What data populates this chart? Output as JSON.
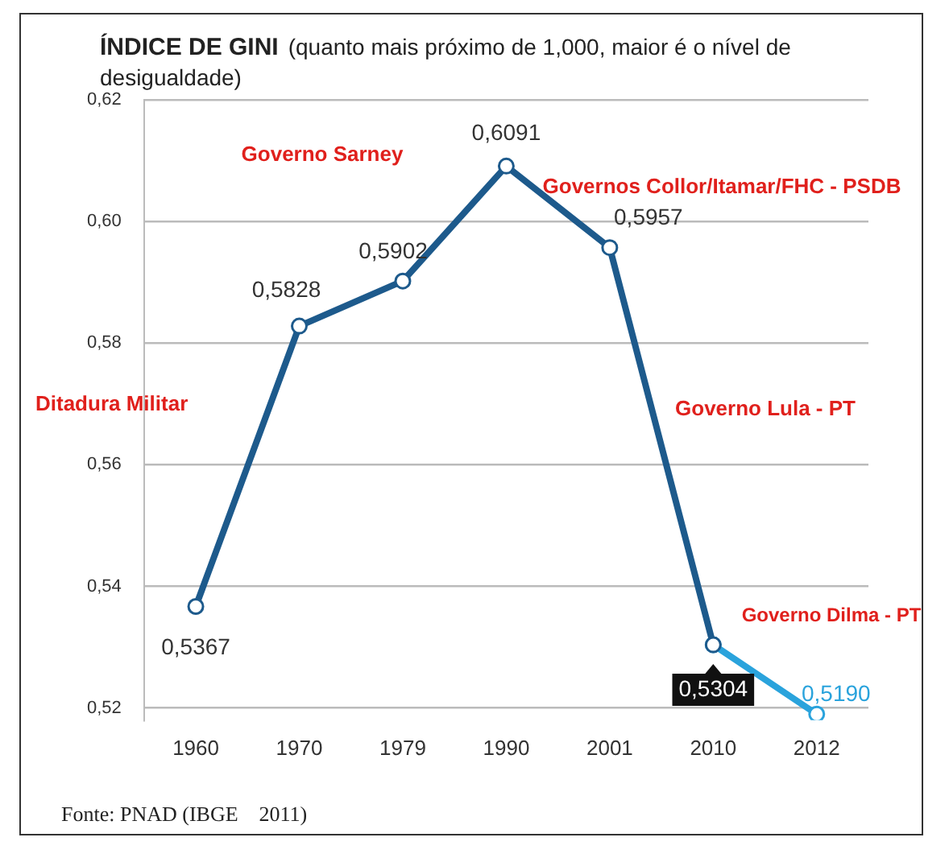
{
  "chart_data": {
    "type": "line",
    "title": "ÍNDICE DE GINI",
    "subtitle": "(quanto mais próximo de 1,000, maior é o nível de desigualdade)",
    "categories": [
      "1960",
      "1970",
      "1979",
      "1990",
      "2001",
      "2010",
      "2012"
    ],
    "series": [
      {
        "color": "#1d5a8c",
        "values": [
          0.5367,
          0.5828,
          0.5902,
          0.6091,
          0.5957,
          0.5304,
          null
        ],
        "value_labels": [
          "0,5367",
          "0,5828",
          "0,5902",
          "0,6091",
          "0,5957",
          "0,5304",
          null
        ]
      },
      {
        "color": "#2aa3dc",
        "values": [
          null,
          null,
          null,
          null,
          null,
          0.5304,
          0.519
        ],
        "value_labels": [
          null,
          null,
          null,
          null,
          null,
          null,
          "0,5190"
        ]
      }
    ],
    "ylim": [
      0.518,
      0.62
    ],
    "yticks": [
      {
        "value": 0.52,
        "label": "0,52"
      },
      {
        "value": 0.54,
        "label": "0,54"
      },
      {
        "value": 0.56,
        "label": "0,56"
      },
      {
        "value": 0.58,
        "label": "0,58"
      },
      {
        "value": 0.6,
        "label": "0,60"
      },
      {
        "value": 0.62,
        "label": "0,62"
      }
    ],
    "grid": "y",
    "legend": false,
    "marker": "circle",
    "line_style": "solid",
    "annotations": [
      "Ditadura Militar",
      "Governo Sarney",
      "Governos Collor/Itamar/FHC - PSDB",
      "Governo Lula - PT",
      "Governo Dilma - PT",
      "Fonte: PNAD (IBGE    2011)"
    ]
  }
}
